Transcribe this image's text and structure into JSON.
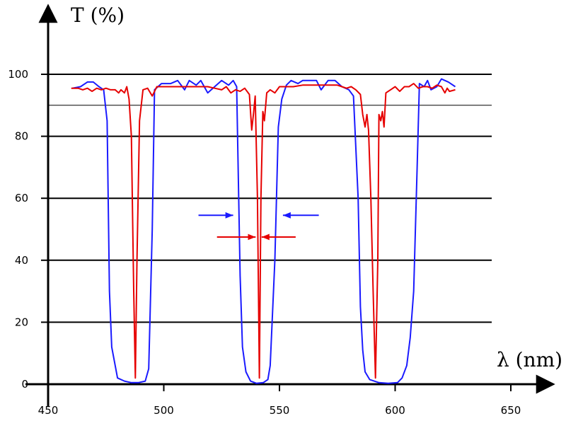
{
  "chart_data": {
    "type": "line",
    "title": "",
    "ylabel": "T (%)",
    "xlabel": "λ (nm)",
    "xlim": [
      450,
      650
    ],
    "ylim": [
      0,
      100
    ],
    "x_ticks": [
      450,
      500,
      550,
      600,
      650
    ],
    "y_ticks": [
      0,
      20,
      40,
      60,
      80,
      100
    ],
    "grid_y": [
      20,
      40,
      60,
      80,
      90,
      100
    ],
    "series": [
      {
        "color": "#1a1aff",
        "points": [
          [
            460.5,
            95.5
          ],
          [
            464,
            96
          ],
          [
            467,
            97.5
          ],
          [
            469.5,
            97.5
          ],
          [
            472,
            96
          ],
          [
            474,
            95
          ],
          [
            475.5,
            85
          ],
          [
            476.5,
            30
          ],
          [
            477.5,
            12
          ],
          [
            480,
            2
          ],
          [
            483,
            1
          ],
          [
            486,
            0.5
          ],
          [
            489,
            0.5
          ],
          [
            492,
            1
          ],
          [
            493.5,
            5
          ],
          [
            495,
            50
          ],
          [
            496,
            95
          ],
          [
            499,
            97
          ],
          [
            503,
            97
          ],
          [
            506,
            98
          ],
          [
            509,
            95
          ],
          [
            511,
            98
          ],
          [
            514,
            96.5
          ],
          [
            516,
            98
          ],
          [
            519,
            94
          ],
          [
            522,
            96
          ],
          [
            525,
            98
          ],
          [
            528,
            96.5
          ],
          [
            530,
            98
          ],
          [
            531.5,
            96
          ],
          [
            533,
            35
          ],
          [
            534,
            12
          ],
          [
            535.5,
            4
          ],
          [
            537.5,
            1
          ],
          [
            540,
            0.3
          ],
          [
            543,
            0.5
          ],
          [
            545,
            1.5
          ],
          [
            546,
            6
          ],
          [
            548,
            40
          ],
          [
            549.5,
            83
          ],
          [
            551,
            92
          ],
          [
            553,
            96.5
          ],
          [
            555,
            98
          ],
          [
            558,
            97
          ],
          [
            560,
            98
          ],
          [
            563,
            98
          ],
          [
            566,
            98
          ],
          [
            568,
            95
          ],
          [
            571,
            98
          ],
          [
            574,
            98
          ],
          [
            577,
            96
          ],
          [
            580,
            95
          ],
          [
            582,
            93
          ],
          [
            584,
            60
          ],
          [
            585,
            25
          ],
          [
            586,
            11
          ],
          [
            587,
            4
          ],
          [
            589,
            1.5
          ],
          [
            593,
            0.5
          ],
          [
            597,
            0.3
          ],
          [
            601,
            0.5
          ],
          [
            603,
            2
          ],
          [
            605,
            6
          ],
          [
            606.5,
            15
          ],
          [
            608,
            30
          ],
          [
            609.5,
            70
          ],
          [
            610.5,
            97
          ],
          [
            612.5,
            96
          ],
          [
            614,
            98
          ],
          [
            615.5,
            95
          ],
          [
            618,
            96
          ],
          [
            620,
            98.5
          ],
          [
            623,
            97.5
          ],
          [
            626,
            96
          ]
        ]
      },
      {
        "color": "#e60000",
        "points": [
          [
            460,
            95.5
          ],
          [
            463,
            95.5
          ],
          [
            465,
            95
          ],
          [
            467,
            95.5
          ],
          [
            469,
            94.5
          ],
          [
            471,
            95.5
          ],
          [
            473,
            95
          ],
          [
            475,
            95.5
          ],
          [
            477,
            95
          ],
          [
            479,
            95
          ],
          [
            480.5,
            94
          ],
          [
            481.5,
            95
          ],
          [
            483,
            94
          ],
          [
            484,
            96
          ],
          [
            485,
            92
          ],
          [
            486,
            80
          ],
          [
            487,
            30
          ],
          [
            487.7,
            2
          ],
          [
            488.4,
            40
          ],
          [
            489.5,
            85
          ],
          [
            491,
            95
          ],
          [
            493,
            95.5
          ],
          [
            495,
            93
          ],
          [
            497,
            96
          ],
          [
            500,
            96
          ],
          [
            505,
            96
          ],
          [
            510,
            96
          ],
          [
            515,
            96
          ],
          [
            519,
            96
          ],
          [
            522,
            95.5
          ],
          [
            525,
            95
          ],
          [
            527,
            96
          ],
          [
            529,
            94
          ],
          [
            531,
            95
          ],
          [
            533,
            94.5
          ],
          [
            535,
            95.5
          ],
          [
            537,
            93.5
          ],
          [
            538,
            82
          ],
          [
            538.8,
            87.5
          ],
          [
            539.5,
            93
          ],
          [
            540.5,
            60
          ],
          [
            541.3,
            2
          ],
          [
            542,
            60
          ],
          [
            542.8,
            88
          ],
          [
            543.5,
            85
          ],
          [
            544.5,
            94
          ],
          [
            546,
            95
          ],
          [
            548,
            94
          ],
          [
            550,
            96
          ],
          [
            553,
            96
          ],
          [
            556,
            96
          ],
          [
            560,
            96.5
          ],
          [
            565,
            96.5
          ],
          [
            570,
            96.5
          ],
          [
            575,
            96.5
          ],
          [
            577,
            96
          ],
          [
            579,
            95.5
          ],
          [
            581,
            96
          ],
          [
            583,
            95
          ],
          [
            585,
            93.5
          ],
          [
            586,
            87
          ],
          [
            587,
            83
          ],
          [
            587.8,
            87
          ],
          [
            588.5,
            82
          ],
          [
            589.5,
            60
          ],
          [
            590.5,
            30
          ],
          [
            591.5,
            2
          ],
          [
            592.5,
            40
          ],
          [
            593,
            87
          ],
          [
            593.8,
            85
          ],
          [
            594.5,
            88
          ],
          [
            595.2,
            83
          ],
          [
            596,
            94
          ],
          [
            598,
            95
          ],
          [
            600,
            96
          ],
          [
            602,
            94.5
          ],
          [
            604,
            96
          ],
          [
            606,
            96
          ],
          [
            608,
            97
          ],
          [
            610,
            95.5
          ],
          [
            612,
            96
          ],
          [
            614,
            96
          ],
          [
            616,
            95.5
          ],
          [
            618,
            96.5
          ],
          [
            620,
            96
          ],
          [
            621.5,
            94
          ],
          [
            622.5,
            95.5
          ],
          [
            623.5,
            94.5
          ],
          [
            626,
            95
          ]
        ]
      }
    ],
    "annotations": [
      {
        "type": "arrow",
        "color": "#1a1aff",
        "from": [
          515,
          54.5
        ],
        "to": [
          530,
          54.5
        ]
      },
      {
        "type": "arrow",
        "color": "#1a1aff",
        "from": [
          567,
          54.5
        ],
        "to": [
          551.5,
          54.5
        ]
      },
      {
        "type": "arrow",
        "color": "#e60000",
        "from": [
          523,
          47.5
        ],
        "to": [
          539.7,
          47.5
        ]
      },
      {
        "type": "arrow",
        "color": "#e60000",
        "from": [
          557,
          47.5
        ],
        "to": [
          542.3,
          47.5
        ]
      }
    ]
  }
}
